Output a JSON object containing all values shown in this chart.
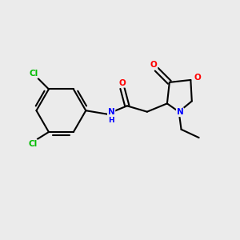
{
  "background_color": "#ebebeb",
  "bond_color": "#000000",
  "atom_colors": {
    "N": "#0000ff",
    "O": "#ff0000",
    "Cl": "#00bb00",
    "C": "#000000",
    "H": "#000000"
  },
  "figsize": [
    3.0,
    3.0
  ],
  "dpi": 100
}
